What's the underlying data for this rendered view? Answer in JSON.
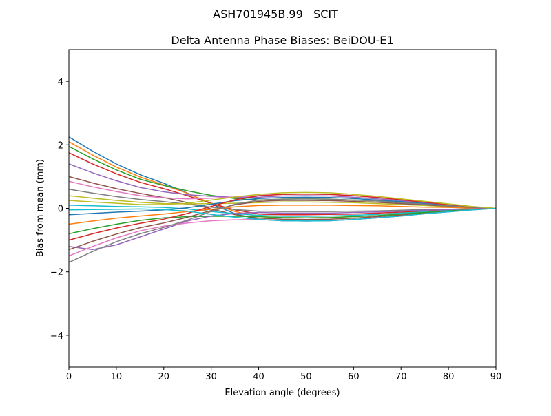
{
  "chart_data": {
    "type": "line",
    "suptitle": "ASH701945B.99   SCIT",
    "title": "Delta Antenna Phase Biases: BeiDOU-E1",
    "xlabel": "Elevation angle (degrees)",
    "ylabel": "Bias from mean (mm)",
    "xlim": [
      0,
      90
    ],
    "ylim": [
      -5,
      5
    ],
    "xticks": [
      0,
      10,
      20,
      30,
      40,
      50,
      60,
      70,
      80,
      90
    ],
    "yticks": [
      4,
      2,
      0,
      -2,
      -4
    ],
    "ytick_labels": [
      "4",
      "2",
      "0",
      "−2",
      "−4"
    ],
    "grid": false,
    "legend": "none",
    "colors": [
      "#1f77b4",
      "#ff7f0e",
      "#2ca02c",
      "#d62728",
      "#9467bd",
      "#8c564b",
      "#e377c2",
      "#7f7f7f",
      "#bcbd22",
      "#17becf"
    ],
    "x": [
      0,
      5,
      10,
      15,
      20,
      25,
      30,
      35,
      40,
      45,
      50,
      55,
      60,
      65,
      70,
      75,
      80,
      85,
      90
    ],
    "series": [
      {
        "values": [
          2.25,
          1.8,
          1.4,
          1.06,
          0.79,
          0.48,
          0.14,
          -0.17,
          -0.35,
          -0.39,
          -0.4,
          -0.39,
          -0.35,
          -0.3,
          -0.24,
          -0.17,
          -0.11,
          -0.05,
          0
        ]
      },
      {
        "values": [
          2.1,
          1.68,
          1.3,
          0.99,
          0.74,
          0.47,
          0.16,
          -0.1,
          -0.26,
          -0.29,
          -0.3,
          -0.29,
          -0.26,
          -0.23,
          -0.18,
          -0.13,
          -0.08,
          -0.04,
          0
        ]
      },
      {
        "values": [
          1.95,
          1.56,
          1.21,
          0.92,
          0.72,
          0.55,
          0.41,
          0.31,
          0.26,
          0.29,
          0.3,
          0.29,
          0.26,
          0.23,
          0.18,
          0.13,
          0.08,
          0.04,
          0
        ]
      },
      {
        "values": [
          1.75,
          1.4,
          1.09,
          0.82,
          0.62,
          0.4,
          0.16,
          -0.05,
          -0.18,
          -0.2,
          -0.2,
          -0.19,
          -0.18,
          -0.15,
          -0.12,
          -0.09,
          -0.05,
          -0.02,
          0
        ]
      },
      {
        "values": [
          1.4,
          1.12,
          0.87,
          0.66,
          0.52,
          0.43,
          0.38,
          0.35,
          0.35,
          0.39,
          0.4,
          0.39,
          0.35,
          0.3,
          0.24,
          0.17,
          0.11,
          0.05,
          0
        ]
      },
      {
        "values": [
          1.0,
          0.8,
          0.62,
          0.47,
          0.34,
          0.18,
          -0.02,
          -0.2,
          -0.31,
          -0.34,
          -0.35,
          -0.34,
          -0.31,
          -0.26,
          -0.21,
          -0.15,
          -0.09,
          -0.04,
          0
        ]
      },
      {
        "values": [
          0.85,
          0.68,
          0.53,
          0.4,
          0.33,
          0.3,
          0.32,
          0.36,
          0.4,
          0.44,
          0.45,
          0.44,
          0.4,
          0.34,
          0.27,
          0.19,
          0.12,
          0.05,
          0
        ]
      },
      {
        "values": [
          0.6,
          0.48,
          0.37,
          0.28,
          0.21,
          0.13,
          0.04,
          -0.04,
          -0.09,
          -0.1,
          -0.1,
          -0.1,
          -0.09,
          -0.08,
          -0.06,
          -0.04,
          -0.03,
          -0.01,
          0
        ]
      },
      {
        "values": [
          0.4,
          0.32,
          0.25,
          0.19,
          0.15,
          0.14,
          0.15,
          0.16,
          0.18,
          0.2,
          0.2,
          0.19,
          0.18,
          0.15,
          0.12,
          0.09,
          0.05,
          0.02,
          0
        ]
      },
      {
        "values": [
          0.1,
          0.08,
          0.06,
          0.05,
          0.03,
          -0.02,
          -0.1,
          -0.17,
          -0.22,
          -0.25,
          -0.25,
          -0.24,
          -0.22,
          -0.19,
          -0.15,
          -0.11,
          -0.07,
          -0.03,
          0
        ]
      },
      {
        "values": [
          -0.2,
          -0.16,
          -0.12,
          -0.09,
          -0.05,
          0.02,
          0.13,
          0.24,
          0.31,
          0.34,
          0.35,
          0.34,
          0.31,
          0.26,
          0.21,
          0.15,
          0.09,
          0.04,
          0
        ]
      },
      {
        "values": [
          -0.5,
          -0.4,
          -0.31,
          -0.24,
          -0.18,
          -0.1,
          -0.03,
          0.05,
          0.09,
          0.1,
          0.1,
          0.1,
          0.09,
          0.08,
          0.06,
          0.04,
          0.03,
          0.01,
          0
        ]
      },
      {
        "values": [
          -0.8,
          -0.64,
          -0.5,
          -0.38,
          -0.3,
          -0.26,
          -0.25,
          -0.25,
          -0.26,
          -0.29,
          -0.3,
          -0.29,
          -0.26,
          -0.23,
          -0.18,
          -0.13,
          -0.08,
          -0.04,
          0
        ]
      },
      {
        "values": [
          -1.0,
          -0.8,
          -0.62,
          -0.47,
          -0.34,
          -0.16,
          0.06,
          0.27,
          0.4,
          0.44,
          0.45,
          0.44,
          0.4,
          0.34,
          0.27,
          0.19,
          0.12,
          0.05,
          0
        ]
      },
      {
        "values": [
          -1.2,
          -1.3,
          -1.15,
          -0.9,
          -0.65,
          -0.4,
          -0.24,
          -0.16,
          -0.13,
          -0.15,
          -0.15,
          -0.15,
          -0.13,
          -0.11,
          -0.09,
          -0.06,
          -0.04,
          -0.02,
          0
        ]
      },
      {
        "values": [
          -1.3,
          -1.04,
          -0.81,
          -0.61,
          -0.46,
          -0.28,
          -0.07,
          0.11,
          0.22,
          0.25,
          0.25,
          0.24,
          0.22,
          0.19,
          0.15,
          0.11,
          0.07,
          0.03,
          0
        ]
      },
      {
        "values": [
          -1.5,
          -1.2,
          -0.93,
          -0.71,
          -0.56,
          -0.46,
          -0.39,
          -0.36,
          -0.35,
          -0.39,
          -0.4,
          -0.39,
          -0.35,
          -0.3,
          -0.24,
          -0.17,
          -0.11,
          -0.05,
          0
        ]
      },
      {
        "values": [
          -1.7,
          -1.36,
          -1.05,
          -0.8,
          -0.6,
          -0.37,
          -0.1,
          0.13,
          0.26,
          0.29,
          0.3,
          0.29,
          0.26,
          0.23,
          0.18,
          0.13,
          0.08,
          0.04,
          0
        ]
      },
      {
        "values": [
          0.25,
          0.2,
          0.16,
          0.12,
          0.12,
          0.16,
          0.26,
          0.36,
          0.44,
          0.49,
          0.5,
          0.49,
          0.44,
          0.38,
          0.3,
          0.22,
          0.14,
          0.06,
          0
        ]
      },
      {
        "values": [
          -0.05,
          -0.04,
          -0.03,
          -0.02,
          -0.04,
          -0.09,
          -0.19,
          -0.28,
          -0.35,
          -0.39,
          -0.4,
          -0.39,
          -0.35,
          -0.3,
          -0.24,
          -0.17,
          -0.11,
          -0.05,
          0
        ]
      }
    ]
  }
}
